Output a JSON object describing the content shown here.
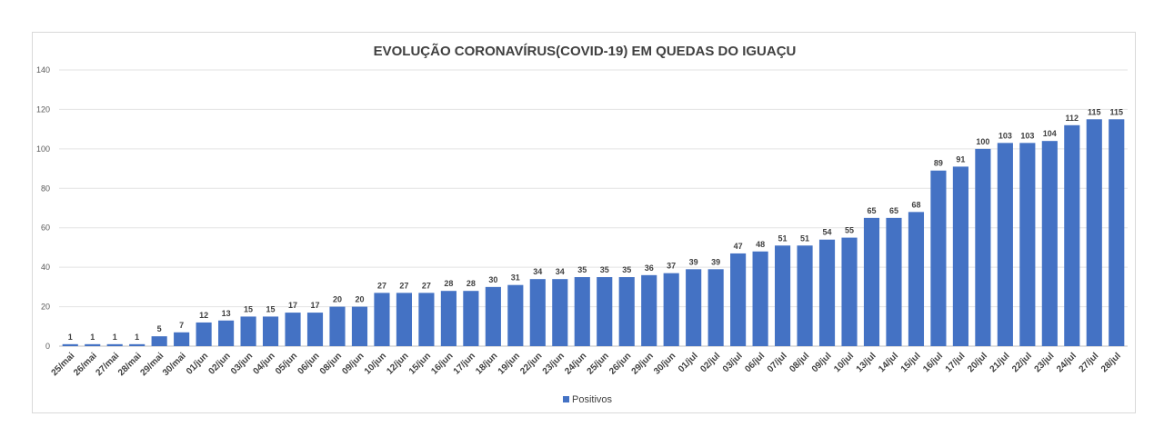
{
  "chart_data": {
    "type": "bar",
    "title": "EVOLUÇÃO CORONAVÍRUS(COVID-19) EM QUEDAS DO IGUAÇU",
    "xlabel": "",
    "ylabel": "",
    "ylim": [
      0,
      140
    ],
    "yticks": [
      0,
      20,
      40,
      60,
      80,
      100,
      120,
      140
    ],
    "grid": true,
    "legend_position": "bottom",
    "bar_color": "#4472C4",
    "categories": [
      "25/mai",
      "26/mai",
      "27/mai",
      "28/mai",
      "29/mai",
      "30/mai",
      "01/jun",
      "02/jun",
      "03/jun",
      "04/jun",
      "05/jun",
      "06/jun",
      "08/jun",
      "09/jun",
      "10/jun",
      "12/jun",
      "15/jun",
      "16/jun",
      "17/jun",
      "18/jun",
      "19/jun",
      "22/jun",
      "23/jun",
      "24/jun",
      "25/jun",
      "26/jun",
      "29/jun",
      "30/jun",
      "01/jul",
      "02/jul",
      "03/jul",
      "06/jul",
      "07/jul",
      "08/jul",
      "09/jul",
      "10/jul",
      "13/jul",
      "14/jul",
      "15/jul",
      "16/jul",
      "17/jul",
      "20/jul",
      "21/jul",
      "22/jul",
      "23/jul",
      "24/jul",
      "27/jul",
      "28/jul"
    ],
    "series": [
      {
        "name": "Positivos",
        "values": [
          1,
          1,
          1,
          1,
          5,
          7,
          12,
          13,
          15,
          15,
          17,
          17,
          20,
          20,
          27,
          27,
          27,
          28,
          28,
          30,
          31,
          34,
          34,
          35,
          35,
          35,
          36,
          37,
          39,
          39,
          47,
          48,
          51,
          51,
          54,
          55,
          65,
          65,
          68,
          89,
          91,
          100,
          103,
          103,
          104,
          112,
          115,
          115
        ]
      }
    ]
  }
}
